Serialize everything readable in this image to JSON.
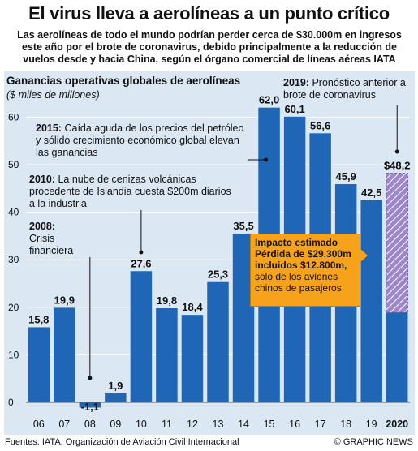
{
  "title": "El virus lleva a aerolíneas a un punto crítico",
  "subtitle": "Las aerolíneas de todo el mundo podrían perder cerca de $30.000m en ingresos este año por el brote de coronavirus, debido principalmente a la reducción de vuelos desde y hacia China, según el órgano comercial de líneas aéreas IATA",
  "colors": {
    "panel_bg": "#dbe7f2",
    "bar": "#1f66b7",
    "bar_2020_loss": "#9d86c9",
    "impact_box": "#f6a21b",
    "gridline": "#ffffff"
  },
  "chart_data": {
    "type": "bar",
    "title": "Ganancias operativas globales de aerolíneas",
    "ylabel": "($ miles de millones)",
    "categories": [
      "06",
      "07",
      "08",
      "09",
      "10",
      "11",
      "12",
      "13",
      "14",
      "15",
      "16",
      "17",
      "18",
      "19",
      "2020"
    ],
    "values": [
      15.8,
      19.9,
      -1.1,
      1.9,
      27.6,
      19.8,
      18.4,
      25.3,
      35.5,
      62.0,
      60.1,
      56.6,
      45.9,
      42.5,
      48.2
    ],
    "value_labels": [
      "15,8",
      "19,9",
      "-1,1",
      "1,9",
      "27,6",
      "19,8",
      "18,4",
      "25,3",
      "35,5",
      "62,0",
      "60,1",
      "56,6",
      "45,9",
      "42,5",
      "$48,2"
    ],
    "estimated_2020_after_impact": 18.9,
    "ylim": [
      -2,
      65
    ],
    "yticks": [
      0,
      10,
      20,
      30,
      40,
      50,
      60
    ],
    "grid": true
  },
  "annotations": {
    "a2019": {
      "year": "2019:",
      "text": "Pronóstico anterior a brote de coronavirus"
    },
    "a2015": {
      "year": "2015:",
      "text": "Caída aguda de los precios del petróleo y sólido crecimiento económico global elevan las ganancias"
    },
    "a2010": {
      "year": "2010:",
      "text": "La nube de cenizas volcánicas procedente de Islandia cuesta $200m diarios a la industria"
    },
    "a2008": {
      "year": "2008:",
      "text": "Crisis financiera"
    }
  },
  "impact": {
    "title": "Impacto estimado",
    "line1": "Pérdida de $29.300m incluidos $12.800m,",
    "line2": "solo de los aviones chinos de pasajeros"
  },
  "footer": {
    "sources": "Fuentes: IATA, Organización de Aviación Civil Internacional",
    "brand": "© GRAPHIC NEWS"
  }
}
